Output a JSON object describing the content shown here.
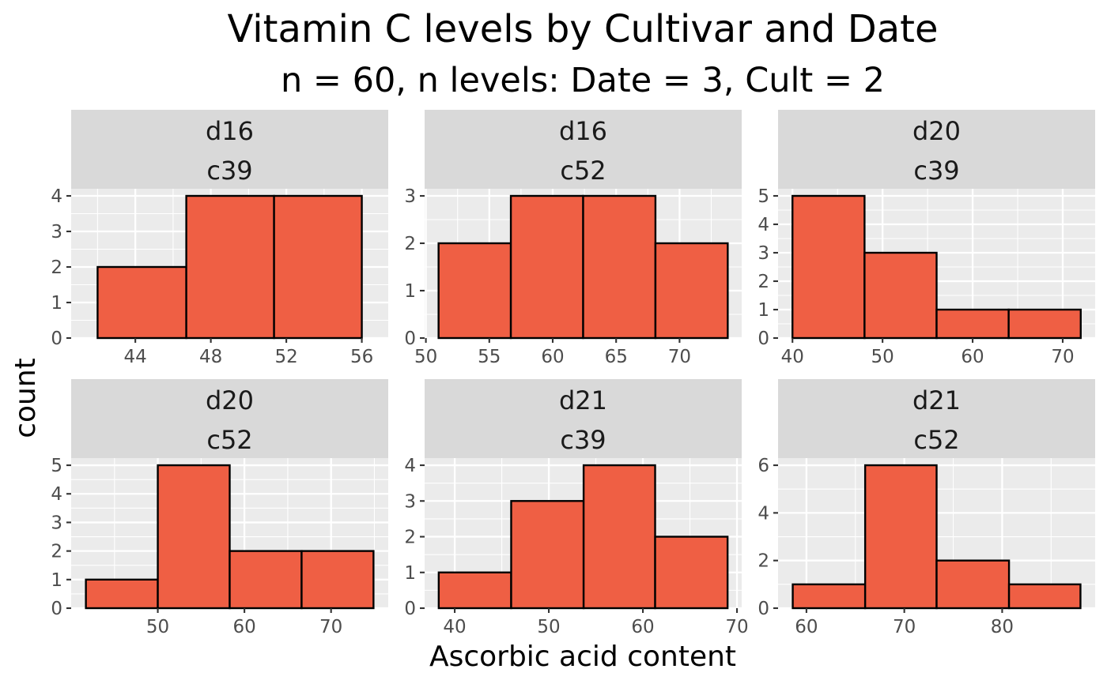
{
  "title": "Vitamin C levels by Cultivar and Date",
  "subtitle": "n = 60, n levels: Date = 3, Cult = 2",
  "xlabel": "Ascorbic acid content",
  "ylabel": "count",
  "colors": {
    "bar_fill": "#ef5f44",
    "bar_stroke": "#000000",
    "panel_bg": "#ebebeb",
    "grid": "#ffffff",
    "strip_bg": "#d9d9d9",
    "tick": "#333333"
  },
  "chart_data": [
    {
      "type": "bar",
      "strip": [
        "d16",
        "c39"
      ],
      "bins": [
        [
          42.0,
          46.7
        ],
        [
          46.7,
          51.35
        ],
        [
          51.35,
          56.0
        ]
      ],
      "counts": [
        2,
        4,
        4
      ],
      "xlim": [
        40.6,
        57.4
      ],
      "ylim": [
        0,
        4.2
      ],
      "x_ticks": [
        44,
        48,
        52,
        56
      ],
      "x_tick_labels": [
        "44",
        "48",
        "52",
        "56"
      ],
      "y_ticks": [
        0,
        1,
        2,
        3,
        4
      ],
      "y_tick_labels": [
        "0",
        "1",
        "2",
        "3",
        "4"
      ]
    },
    {
      "type": "bar",
      "strip": [
        "d16",
        "c52"
      ],
      "bins": [
        [
          51.0,
          56.7
        ],
        [
          56.7,
          62.4
        ],
        [
          62.4,
          68.1
        ],
        [
          68.1,
          73.8
        ]
      ],
      "counts": [
        2,
        3,
        3,
        2
      ],
      "xlim": [
        49.9,
        74.9
      ],
      "ylim": [
        0,
        3.15
      ],
      "x_ticks": [
        50,
        55,
        60,
        65,
        70
      ],
      "x_tick_labels": [
        "50",
        "55",
        "60",
        "65",
        "70"
      ],
      "y_ticks": [
        0,
        1,
        2,
        3
      ],
      "y_tick_labels": [
        "0",
        "1",
        "2",
        "3"
      ]
    },
    {
      "type": "bar",
      "strip": [
        "d20",
        "c39"
      ],
      "bins": [
        [
          40.0,
          48.0
        ],
        [
          48.0,
          56.0
        ],
        [
          56.0,
          64.0
        ],
        [
          64.0,
          72.0
        ]
      ],
      "counts": [
        5,
        3,
        1,
        1
      ],
      "xlim": [
        38.4,
        73.6
      ],
      "ylim": [
        0,
        5.25
      ],
      "x_ticks": [
        40,
        50,
        60,
        70
      ],
      "x_tick_labels": [
        "40",
        "50",
        "60",
        "70"
      ],
      "y_ticks": [
        0,
        1,
        2,
        3,
        4,
        5
      ],
      "y_tick_labels": [
        "0",
        "1",
        "2",
        "3",
        "4",
        "5"
      ]
    },
    {
      "type": "bar",
      "strip": [
        "d20",
        "c52"
      ],
      "bins": [
        [
          41.7,
          50.0
        ],
        [
          50.0,
          58.3
        ],
        [
          58.3,
          66.6
        ],
        [
          66.6,
          74.9
        ]
      ],
      "counts": [
        1,
        5,
        2,
        2
      ],
      "xlim": [
        40.0,
        76.6
      ],
      "ylim": [
        0,
        5.25
      ],
      "x_ticks": [
        50,
        60,
        70
      ],
      "x_tick_labels": [
        "50",
        "60",
        "70"
      ],
      "y_ticks": [
        0,
        1,
        2,
        3,
        4,
        5
      ],
      "y_tick_labels": [
        "0",
        "1",
        "2",
        "3",
        "4",
        "5"
      ]
    },
    {
      "type": "bar",
      "strip": [
        "d21",
        "c39"
      ],
      "bins": [
        [
          38.3,
          46.0
        ],
        [
          46.0,
          53.7
        ],
        [
          53.7,
          61.3
        ],
        [
          61.3,
          69.0
        ]
      ],
      "counts": [
        1,
        3,
        4,
        2
      ],
      "xlim": [
        36.8,
        70.5
      ],
      "ylim": [
        0,
        4.2
      ],
      "x_ticks": [
        40,
        50,
        60,
        70
      ],
      "x_tick_labels": [
        "40",
        "50",
        "60",
        "70"
      ],
      "y_ticks": [
        0,
        1,
        2,
        3,
        4
      ],
      "y_tick_labels": [
        "0",
        "1",
        "2",
        "3",
        "4"
      ]
    },
    {
      "type": "bar",
      "strip": [
        "d21",
        "c52"
      ],
      "bins": [
        [
          58.6,
          66.0
        ],
        [
          66.0,
          73.3
        ],
        [
          73.3,
          80.7
        ],
        [
          80.7,
          88.0
        ]
      ],
      "counts": [
        1,
        6,
        2,
        1
      ],
      "xlim": [
        57.1,
        89.5
      ],
      "ylim": [
        0,
        6.3
      ],
      "x_ticks": [
        60,
        70,
        80
      ],
      "x_tick_labels": [
        "60",
        "70",
        "80"
      ],
      "y_ticks": [
        0,
        2,
        4,
        6
      ],
      "y_tick_labels": [
        "0",
        "2",
        "4",
        "6"
      ]
    }
  ]
}
